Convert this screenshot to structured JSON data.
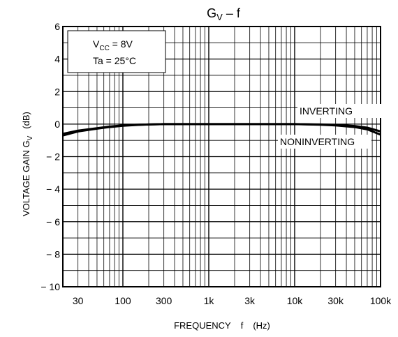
{
  "chart_data": {
    "type": "line",
    "title": {
      "main": "G",
      "sub": "V",
      "rest": " – f"
    },
    "xlabel": "FREQUENCY f (Hz)",
    "ylabel": {
      "main": "VOLTAGE GAIN G",
      "sub": "V",
      "unit": "(dB)"
    },
    "x_scale": "log",
    "xlim": [
      20,
      100000
    ],
    "ylim": [
      -10,
      6
    ],
    "grid": true,
    "x_ticks": [
      {
        "value": 30,
        "label": "30"
      },
      {
        "value": 100,
        "label": "100"
      },
      {
        "value": 300,
        "label": "300"
      },
      {
        "value": 1000,
        "label": "1k"
      },
      {
        "value": 3000,
        "label": "3k"
      },
      {
        "value": 10000,
        "label": "10k"
      },
      {
        "value": 30000,
        "label": "30k"
      },
      {
        "value": 100000,
        "label": "100k"
      }
    ],
    "y_ticks": [
      {
        "value": 6,
        "label": "6"
      },
      {
        "value": 4,
        "label": "4"
      },
      {
        "value": 2,
        "label": "2"
      },
      {
        "value": 0,
        "label": "0"
      },
      {
        "value": -2,
        "label": "− 2"
      },
      {
        "value": -4,
        "label": "− 4"
      },
      {
        "value": -6,
        "label": "− 6"
      },
      {
        "value": -8,
        "label": "− 8"
      },
      {
        "value": -10,
        "label": "− 10"
      }
    ],
    "conditions": [
      {
        "main": "V",
        "sub": "CC",
        "rest": " = 8V"
      },
      {
        "main": "Ta = 25°C",
        "sub": "",
        "rest": ""
      }
    ],
    "series": [
      {
        "name": "INVERTING",
        "x": [
          20,
          30,
          50,
          70,
          100,
          150,
          200,
          300,
          1000,
          3000,
          10000,
          20000,
          30000,
          50000,
          70000,
          100000
        ],
        "y": [
          -0.6,
          -0.4,
          -0.25,
          -0.15,
          -0.08,
          -0.04,
          -0.02,
          0,
          0,
          0,
          0,
          -0.02,
          -0.05,
          -0.12,
          -0.22,
          -0.45
        ]
      },
      {
        "name": "NONINVERTING",
        "x": [
          20,
          30,
          50,
          70,
          100,
          150,
          200,
          300,
          1000,
          3000,
          10000,
          20000,
          30000,
          50000,
          70000,
          100000
        ],
        "y": [
          -0.7,
          -0.45,
          -0.28,
          -0.18,
          -0.1,
          -0.05,
          -0.02,
          0,
          0,
          0,
          0,
          -0.04,
          -0.08,
          -0.18,
          -0.32,
          -0.65
        ]
      }
    ]
  }
}
